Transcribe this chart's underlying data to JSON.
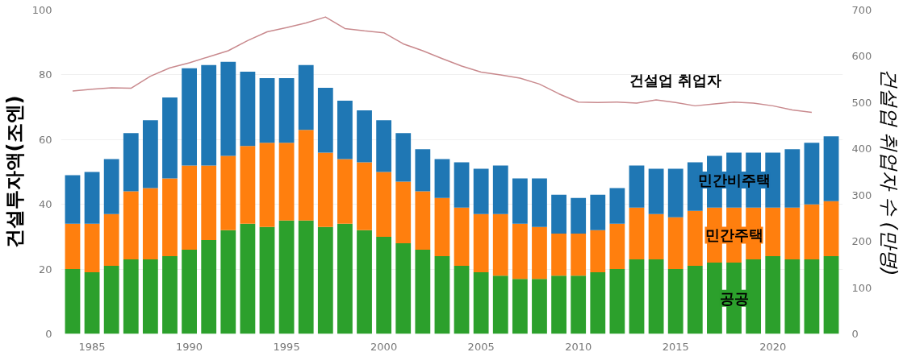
{
  "chart_data": {
    "type": "bar",
    "stacked": true,
    "x": [
      1984,
      1985,
      1986,
      1987,
      1988,
      1989,
      1990,
      1991,
      1992,
      1993,
      1994,
      1995,
      1996,
      1997,
      1998,
      1999,
      2000,
      2001,
      2002,
      2003,
      2004,
      2005,
      2006,
      2007,
      2008,
      2009,
      2010,
      2011,
      2012,
      2013,
      2014,
      2015,
      2016,
      2017,
      2018,
      2019,
      2020,
      2021,
      2022,
      2023
    ],
    "ylabel": "건설투자액(조엔)",
    "y2label": "건설업 취업자 수 (만명)",
    "ylim": [
      0,
      100
    ],
    "yticks": [
      0,
      20,
      40,
      60,
      80,
      100
    ],
    "y2lim": [
      0,
      700
    ],
    "y2ticks": [
      0,
      100,
      200,
      300,
      400,
      500,
      600,
      700
    ],
    "xlim": [
      1983.4,
      2023.6
    ],
    "xticks": [
      1985,
      1990,
      1995,
      2000,
      2005,
      2010,
      2015,
      2020
    ],
    "grid": "y",
    "series": [
      {
        "name": "공공",
        "color": "#2ca02c",
        "values": [
          20,
          19,
          21,
          23,
          23,
          24,
          26,
          29,
          32,
          34,
          33,
          35,
          35,
          33,
          34,
          32,
          30,
          28,
          26,
          24,
          21,
          19,
          18,
          17,
          17,
          18,
          18,
          19,
          20,
          23,
          23,
          20,
          21,
          22,
          22,
          23,
          24,
          23,
          23,
          24
        ]
      },
      {
        "name": "민간주택",
        "color": "#ff7f0e",
        "values": [
          14,
          15,
          16,
          21,
          22,
          24,
          26,
          23,
          23,
          24,
          26,
          24,
          28,
          23,
          20,
          21,
          20,
          19,
          18,
          18,
          18,
          18,
          19,
          17,
          16,
          13,
          13,
          13,
          14,
          16,
          14,
          16,
          17,
          17,
          17,
          16,
          15,
          16,
          17,
          17
        ]
      },
      {
        "name": "민간비주택",
        "color": "#1f77b4",
        "values": [
          15,
          16,
          17,
          18,
          21,
          25,
          30,
          31,
          29,
          23,
          20,
          20,
          20,
          20,
          18,
          16,
          16,
          15,
          13,
          12,
          14,
          14,
          15,
          14,
          15,
          12,
          11,
          11,
          11,
          13,
          14,
          15,
          15,
          16,
          17,
          17,
          17,
          18,
          19,
          20
        ]
      },
      {
        "name": "건설업 취업자",
        "type": "line",
        "axis": "y2",
        "color": "#c98a8e",
        "x": [
          1984,
          1985,
          1986,
          1987,
          1988,
          1989,
          1990,
          1991,
          1992,
          1993,
          1994,
          1995,
          1996,
          1997,
          1998,
          1999,
          2000,
          2001,
          2002,
          2003,
          2004,
          2005,
          2006,
          2007,
          2008,
          2009,
          2010,
          2011,
          2012,
          2013,
          2014,
          2015,
          2016,
          2017,
          2018,
          2019,
          2020,
          2021,
          2022
        ],
        "values": [
          525,
          529,
          532,
          531,
          557,
          575,
          586,
          599,
          612,
          634,
          653,
          662,
          672,
          685,
          660,
          655,
          651,
          627,
          612,
          595,
          579,
          566,
          560,
          553,
          540,
          519,
          501,
          500,
          501,
          499,
          506,
          500,
          493,
          497,
          501,
          499,
          493,
          484,
          479
        ]
      }
    ]
  }
}
